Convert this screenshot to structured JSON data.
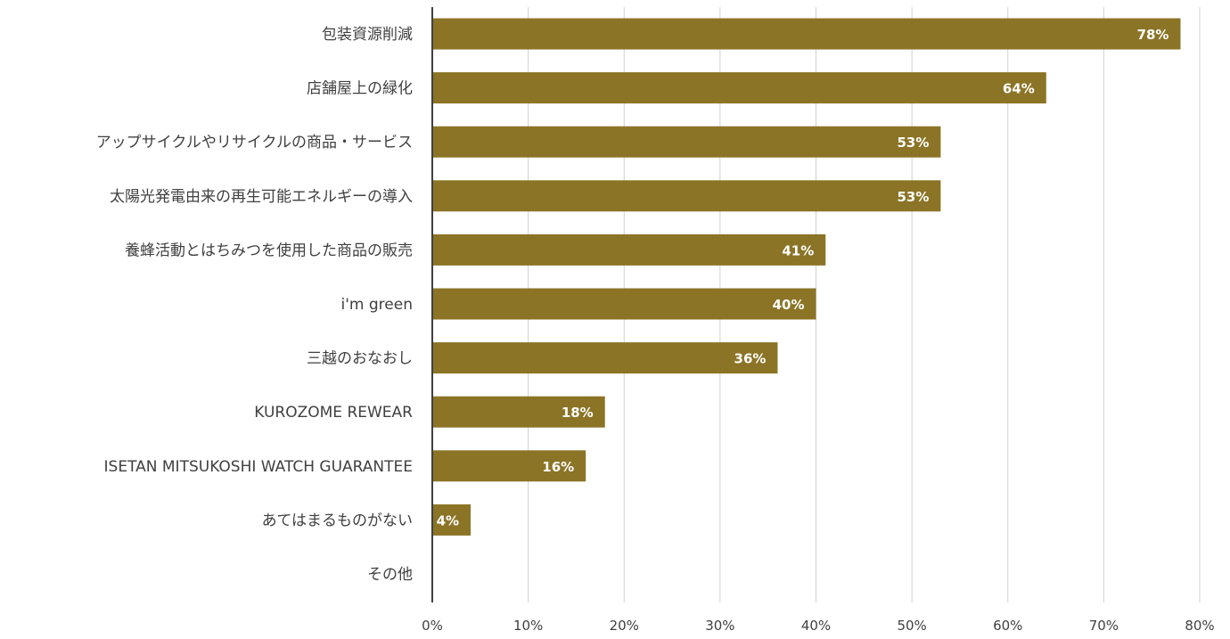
{
  "chart_data": {
    "type": "bar",
    "orientation": "horizontal",
    "title": "",
    "xlabel": "",
    "ylabel": "",
    "xlim": [
      0,
      80
    ],
    "x_ticks": [
      0,
      10,
      20,
      30,
      40,
      50,
      60,
      70,
      80
    ],
    "x_tick_labels": [
      "0%",
      "10%",
      "20%",
      "30%",
      "40%",
      "50%",
      "60%",
      "70%",
      "80%"
    ],
    "grid": "vertical",
    "legend": "none",
    "bar_color": "#8b7426",
    "categories": [
      "包装資源削減",
      "店舗屋上の緑化",
      "アップサイクルやリサイクルの商品・サービス",
      "太陽光発電由来の再生可能エネルギーの導入",
      "養蜂活動とはちみつを使用した商品の販売",
      "i'm green",
      "三越のおなおし",
      "KUROZOME REWEAR",
      "ISETAN MITSUKOSHI WATCH GUARANTEE",
      "あてはまるものがない",
      "その他"
    ],
    "values": [
      78,
      64,
      53,
      53,
      41,
      40,
      36,
      18,
      16,
      4,
      0
    ],
    "value_labels": [
      "78%",
      "64%",
      "53%",
      "53%",
      "41%",
      "40%",
      "36%",
      "18%",
      "16%",
      "4%",
      ""
    ]
  }
}
